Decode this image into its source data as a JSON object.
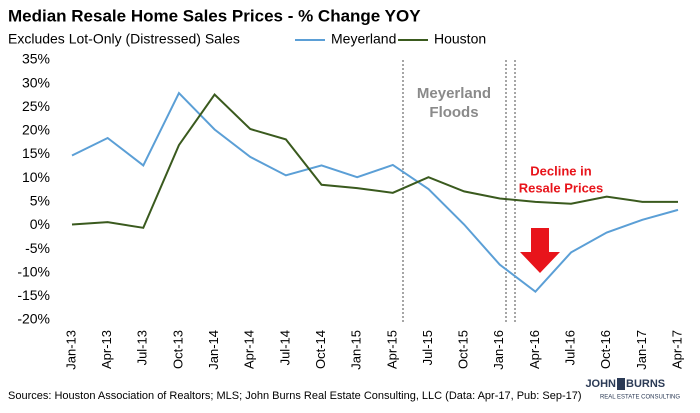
{
  "chart_data": {
    "type": "line",
    "title": "Median Resale Home Sales Prices - % Change YOY",
    "subtitle": "Excludes Lot-Only (Distressed) Sales",
    "categories": [
      "Jan-13",
      "Apr-13",
      "Jul-13",
      "Oct-13",
      "Jan-14",
      "Apr-14",
      "Jul-14",
      "Oct-14",
      "Jan-15",
      "Apr-15",
      "Jul-15",
      "Oct-15",
      "Jan-16",
      "Apr-16",
      "Jul-16",
      "Oct-16",
      "Jan-17",
      "Apr-17"
    ],
    "series": [
      {
        "name": "Meyerland",
        "color": "#5b9fd6",
        "values": [
          14.8,
          18.5,
          12.7,
          28.0,
          20.3,
          14.5,
          10.6,
          12.7,
          10.2,
          12.8,
          7.7,
          0.2,
          -8.3,
          -14.0,
          -5.7,
          -1.5,
          1.2,
          3.3
        ]
      },
      {
        "name": "Houston",
        "color": "#3a5a1e",
        "values": [
          0.2,
          0.7,
          -0.5,
          17.0,
          27.7,
          20.4,
          18.2,
          8.6,
          7.9,
          6.9,
          10.2,
          7.2,
          5.7,
          5.0,
          4.6,
          6.1,
          5.0,
          5.0
        ]
      }
    ],
    "ylim": [
      -20,
      35
    ],
    "yticks": [
      {
        "value": -20,
        "label": "-20%"
      },
      {
        "value": -15,
        "label": "-15%"
      },
      {
        "value": -10,
        "label": "-10%"
      },
      {
        "value": -5,
        "label": "-5%"
      },
      {
        "value": 0,
        "label": "0%"
      },
      {
        "value": 5,
        "label": "5%"
      },
      {
        "value": 10,
        "label": "10%"
      },
      {
        "value": 15,
        "label": "15%"
      },
      {
        "value": 20,
        "label": "20%"
      },
      {
        "value": 25,
        "label": "25%"
      },
      {
        "value": 30,
        "label": "30%"
      },
      {
        "value": 35,
        "label": "35%"
      }
    ],
    "grid": false,
    "flood_label": [
      "Meyerland",
      "Floods"
    ],
    "decline_label": [
      "Decline in",
      "Resale Prices"
    ],
    "source": "Sources: Houston Association of Realtors; MLS; John Burns Real Estate Consulting, LLC (Data: Apr-17, Pub: Sep-17)",
    "logo": [
      "JOHN",
      "BURNS",
      "REAL ESTATE CONSULTING"
    ]
  }
}
